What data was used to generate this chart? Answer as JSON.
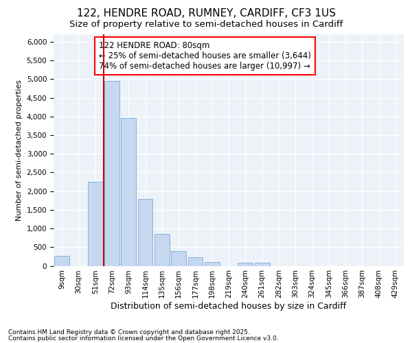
{
  "title1": "122, HENDRE ROAD, RUMNEY, CARDIFF, CF3 1US",
  "title2": "Size of property relative to semi-detached houses in Cardiff",
  "xlabel": "Distribution of semi-detached houses by size in Cardiff",
  "ylabel": "Number of semi-detached properties",
  "categories": [
    "9sqm",
    "30sqm",
    "51sqm",
    "72sqm",
    "93sqm",
    "114sqm",
    "135sqm",
    "156sqm",
    "177sqm",
    "198sqm",
    "219sqm",
    "240sqm",
    "261sqm",
    "282sqm",
    "303sqm",
    "324sqm",
    "345sqm",
    "366sqm",
    "387sqm",
    "408sqm",
    "429sqm"
  ],
  "values": [
    270,
    0,
    2250,
    4950,
    3950,
    1800,
    850,
    400,
    225,
    100,
    0,
    75,
    75,
    0,
    0,
    0,
    0,
    0,
    0,
    0,
    0
  ],
  "bar_color": "#c5d8f0",
  "bar_edge_color": "#7aaad4",
  "vline_color": "#cc0000",
  "vline_index": 2.5,
  "annotation_text": "122 HENDRE ROAD: 80sqm\n← 25% of semi-detached houses are smaller (3,644)\n74% of semi-detached houses are larger (10,997) →",
  "annotation_fontsize": 8.5,
  "ylim_max": 6200,
  "yticks": [
    0,
    500,
    1000,
    1500,
    2000,
    2500,
    3000,
    3500,
    4000,
    4500,
    5000,
    5500,
    6000
  ],
  "footer1": "Contains HM Land Registry data © Crown copyright and database right 2025.",
  "footer2": "Contains public sector information licensed under the Open Government Licence v3.0.",
  "fig_bg_color": "#ffffff",
  "plot_bg_color": "#edf2f9",
  "title_fontsize": 11,
  "subtitle_fontsize": 9.5,
  "grid_color": "#ffffff",
  "tick_fontsize": 7.5,
  "xlabel_fontsize": 9,
  "ylabel_fontsize": 8
}
